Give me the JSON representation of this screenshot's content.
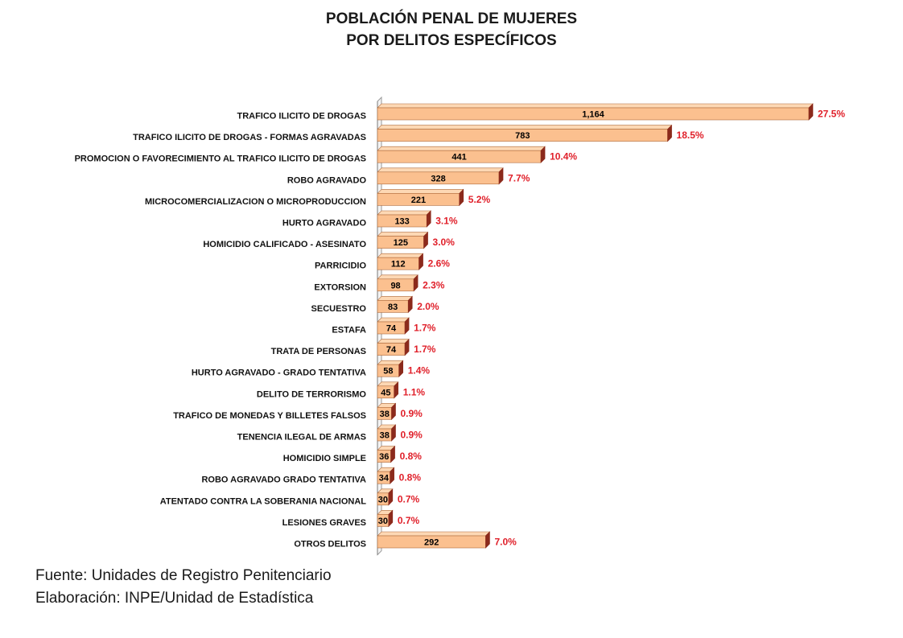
{
  "chart_data": {
    "type": "bar",
    "orientation": "horizontal",
    "title_lines": [
      "POBLACIÓN PENAL DE MUJERES",
      "POR DELITOS ESPECÍFICOS"
    ],
    "categories": [
      "TRAFICO ILICITO DE DROGAS",
      "TRAFICO ILICITO DE DROGAS - FORMAS AGRAVADAS",
      "PROMOCION O FAVORECIMIENTO AL TRAFICO ILICITO DE DROGAS",
      "ROBO AGRAVADO",
      "MICROCOMERCIALIZACION O MICROPRODUCCION",
      "HURTO AGRAVADO",
      "HOMICIDIO CALIFICADO - ASESINATO",
      "PARRICIDIO",
      "EXTORSION",
      "SECUESTRO",
      "ESTAFA",
      "TRATA DE PERSONAS",
      "HURTO AGRAVADO - GRADO TENTATIVA",
      "DELITO DE TERRORISMO",
      "TRAFICO DE MONEDAS Y BILLETES FALSOS",
      "TENENCIA ILEGAL DE ARMAS",
      "HOMICIDIO SIMPLE",
      "ROBO AGRAVADO GRADO TENTATIVA",
      "ATENTADO CONTRA LA SOBERANIA NACIONAL",
      "LESIONES GRAVES",
      "OTROS DELITOS"
    ],
    "values": [
      1164,
      783,
      441,
      328,
      221,
      133,
      125,
      112,
      98,
      83,
      74,
      74,
      58,
      45,
      38,
      38,
      36,
      34,
      30,
      30,
      292
    ],
    "value_labels": [
      "1,164",
      "783",
      "441",
      "328",
      "221",
      "133",
      "125",
      "112",
      "98",
      "83",
      "74",
      "74",
      "58",
      "45",
      "38",
      "38",
      "36",
      "34",
      "30",
      "30",
      "292"
    ],
    "percent_labels": [
      "27.5%",
      "18.5%",
      "10.4%",
      "7.7%",
      "5.2%",
      "3.1%",
      "3.0%",
      "2.6%",
      "2.3%",
      "2.0%",
      "1.7%",
      "1.7%",
      "1.4%",
      "1.1%",
      "0.9%",
      "0.9%",
      "0.8%",
      "0.8%",
      "0.7%",
      "0.7%",
      "7.0%"
    ],
    "xlim": [
      0,
      1164
    ],
    "grid": false,
    "legend": "none",
    "colors": {
      "bar_face": "#fbc08f",
      "bar_top": "#fdd8b4",
      "bar_side": "#8b2a1c",
      "bar_edge": "#b06a3a",
      "percent_text": "#e0202a"
    }
  },
  "footer": {
    "source": "Fuente: Unidades de Registro Penitenciario",
    "credit": "Elaboración: INPE/Unidad de Estadística"
  }
}
